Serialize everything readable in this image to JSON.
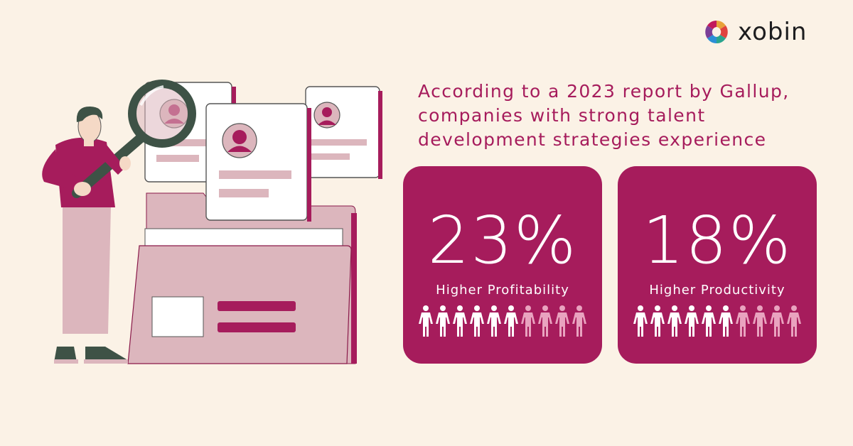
{
  "brand": {
    "name": "xobin",
    "colors": {
      "magenta": "#a61c5c",
      "pink": "#dcb6bd",
      "background": "#fbf2e6",
      "dark_green": "#3e5246"
    }
  },
  "headline": "According to a 2023 report by Gallup, companies with strong talent development strategies experience",
  "stats": [
    {
      "value": "23%",
      "label": "Higher Profitability",
      "highlighted_people": 6,
      "total_people": 10
    },
    {
      "value": "18%",
      "label": "Higher Productivity",
      "highlighted_people": 6,
      "total_people": 10
    }
  ],
  "icons": [
    "xobin-logo-icon",
    "person-icon",
    "magnifying-glass-icon",
    "profile-card-icon",
    "folder-icon"
  ]
}
